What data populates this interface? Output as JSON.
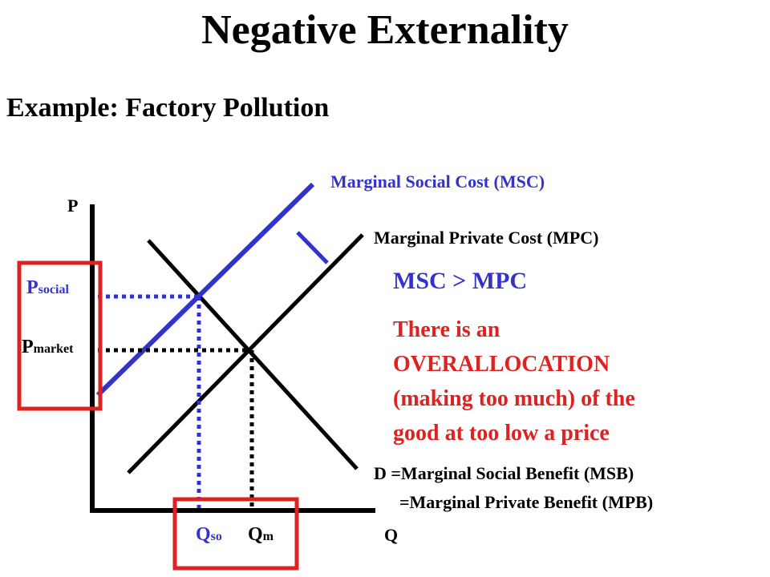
{
  "title": "Negative Externality",
  "subtitle": "Example: Factory Pollution",
  "axes": {
    "y_label": "P",
    "x_label": "Q"
  },
  "curves": {
    "msc_label": "Marginal Social Cost (MSC)",
    "mpc_label": "Marginal Private Cost (MPC)",
    "demand_line1": "D =Marginal Social Benefit (MSB)",
    "demand_line2": "=Marginal Private Benefit (MPB)"
  },
  "prices": {
    "p_social_main": "P",
    "p_social_sub": "social",
    "p_market_main": "P",
    "p_market_sub": "market"
  },
  "quantities": {
    "q_so_main": "Q",
    "q_so_sub": "so",
    "q_m_main": "Q",
    "q_m_sub": "m"
  },
  "comparison": "MSC > MPC",
  "explanation": [
    "There is an",
    "OVERALLOCATION",
    "(making too much) of the",
    "good at too low a price"
  ],
  "colors": {
    "msc": "#3333cc",
    "highlight": "#dd2222",
    "text": "#000000"
  }
}
